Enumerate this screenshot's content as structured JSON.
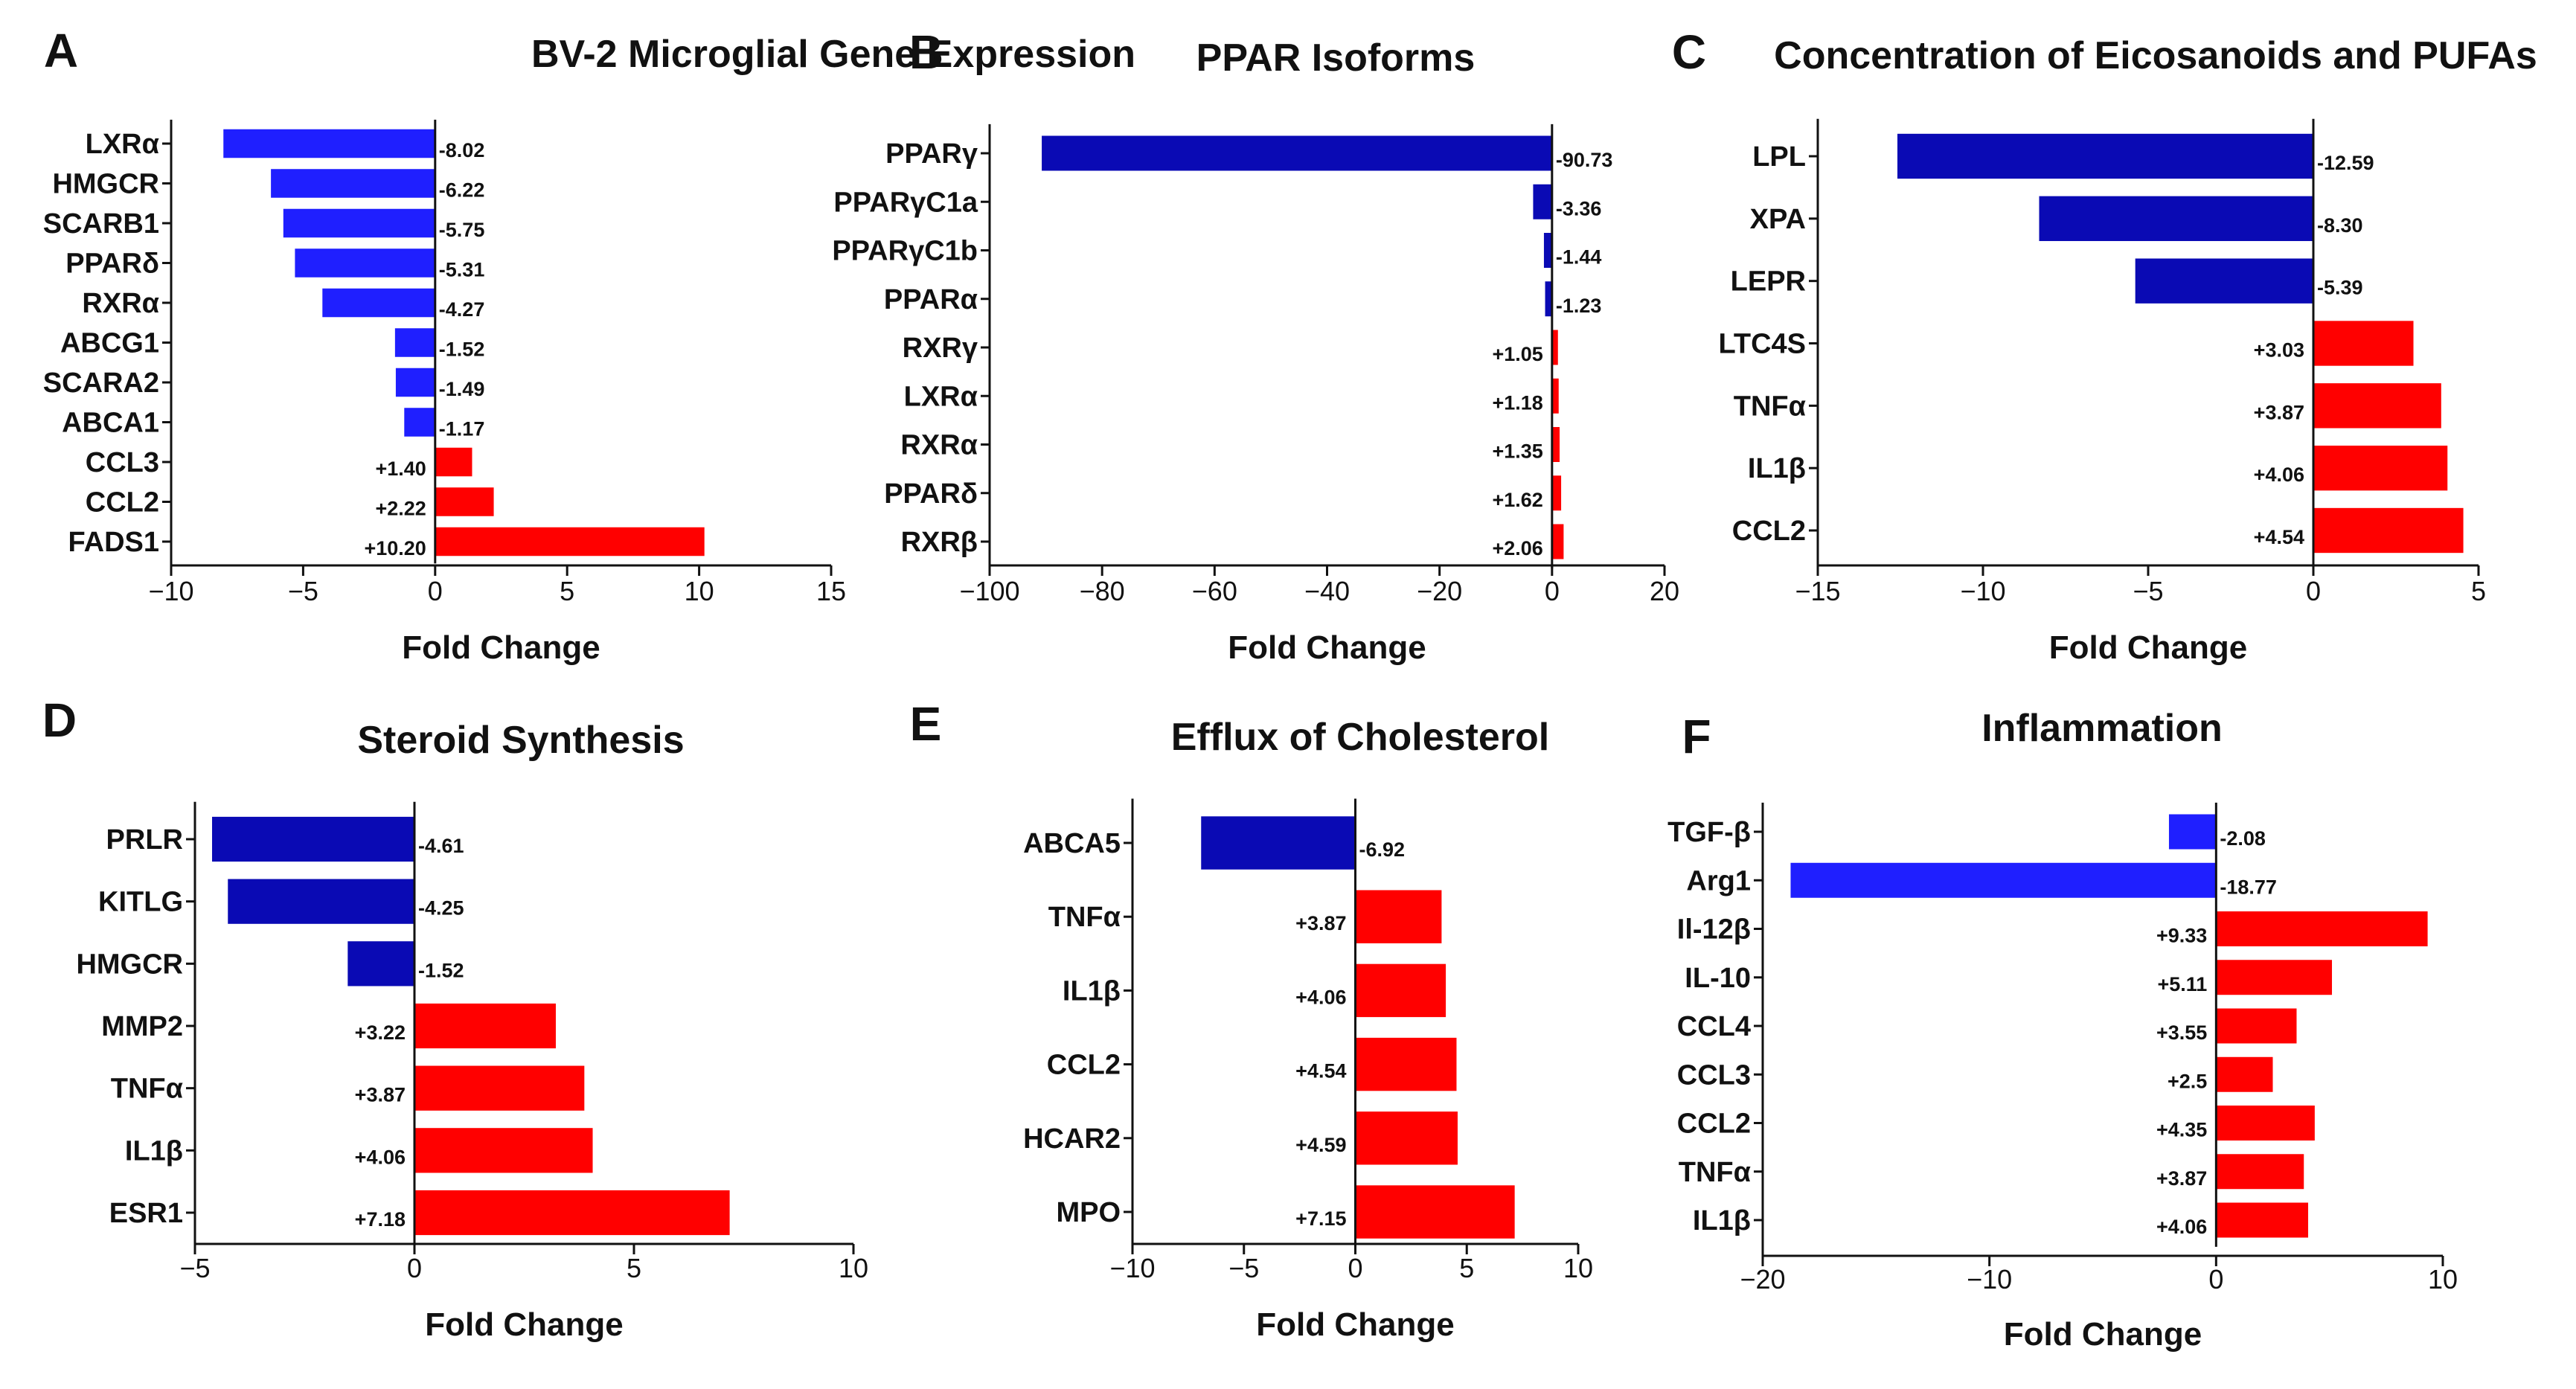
{
  "figure": {
    "x_axis_title": "Fold Change"
  },
  "colors": {
    "negative_light": "#1f1fff",
    "negative_dark": "#0a0ab4",
    "positive": "#ff0000",
    "axis": "#111111"
  },
  "chart_data": [
    {
      "letter": "A",
      "type": "bar",
      "orientation": "horizontal",
      "title": "BV-2 Microglial Gene Expression",
      "xlabel": "Fold Change",
      "xlim": [
        -10,
        15
      ],
      "xticks": [
        -10,
        -5,
        0,
        5,
        10,
        15
      ],
      "xtick_labels": [
        "−10",
        "−5",
        "0",
        "5",
        "10",
        "15"
      ],
      "negative_shade": "light",
      "categories": [
        "LXRα",
        "HMGCR",
        "SCARB1",
        "PPARδ",
        "RXRα",
        "ABCG1",
        "SCARA2",
        "ABCA1",
        "CCL3",
        "CCL2",
        "FADS1"
      ],
      "values": [
        -8.02,
        -6.22,
        -5.75,
        -5.31,
        -4.27,
        -1.52,
        -1.49,
        -1.17,
        1.4,
        2.22,
        10.2
      ],
      "value_labels": [
        "-8.02",
        "-6.22",
        "-5.75",
        "-5.31",
        "-4.27",
        "-1.52",
        "-1.49",
        "-1.17",
        "+1.40",
        "+2.22",
        "+10.20"
      ]
    },
    {
      "letter": "B",
      "type": "bar",
      "orientation": "horizontal",
      "title": "PPAR Isoforms",
      "xlabel": "Fold Change",
      "xlim": [
        -100,
        20
      ],
      "xticks": [
        -100,
        -80,
        -60,
        -40,
        -20,
        0,
        20
      ],
      "xtick_labels": [
        "−100",
        "−80",
        "−60",
        "−40",
        "−20",
        "0",
        "20"
      ],
      "negative_shade": "dark",
      "categories": [
        "PPARγ",
        "PPARγC1a",
        "PPARγC1b",
        "PPARα",
        "RXRγ",
        "LXRα",
        "RXRα",
        "PPARδ",
        "RXRβ"
      ],
      "values": [
        -90.73,
        -3.36,
        -1.44,
        -1.23,
        1.05,
        1.18,
        1.35,
        1.62,
        2.06
      ],
      "value_labels": [
        "-90.73",
        "-3.36",
        "-1.44",
        "-1.23",
        "+1.05",
        "+1.18",
        "+1.35",
        "+1.62",
        "+2.06"
      ]
    },
    {
      "letter": "C",
      "type": "bar",
      "orientation": "horizontal",
      "title": "Concentration of Eicosanoids and PUFAs",
      "xlabel": "Fold Change",
      "xlim": [
        -15,
        5
      ],
      "xticks": [
        -15,
        -10,
        -5,
        0,
        5
      ],
      "xtick_labels": [
        "−15",
        "−10",
        "−5",
        "0",
        "5"
      ],
      "negative_shade": "dark",
      "categories": [
        "LPL",
        "XPA",
        "LEPR",
        "LTC4S",
        "TNFα",
        "IL1β",
        "CCL2"
      ],
      "values": [
        -12.59,
        -8.3,
        -5.39,
        3.03,
        3.87,
        4.06,
        4.54
      ],
      "value_labels": [
        "-12.59",
        "-8.30",
        "-5.39",
        "+3.03",
        "+3.87",
        "+4.06",
        "+4.54"
      ]
    },
    {
      "letter": "D",
      "type": "bar",
      "orientation": "horizontal",
      "title": "Steroid Synthesis",
      "xlabel": "Fold Change",
      "xlim": [
        -5,
        10
      ],
      "xticks": [
        -5,
        0,
        5,
        10
      ],
      "xtick_labels": [
        "−5",
        "0",
        "5",
        "10"
      ],
      "negative_shade": "dark",
      "categories": [
        "PRLR",
        "KITLG",
        "HMGCR",
        "MMP2",
        "TNFα",
        "IL1β",
        "ESR1"
      ],
      "values": [
        -4.61,
        -4.25,
        -1.52,
        3.22,
        3.87,
        4.06,
        7.18
      ],
      "value_labels": [
        "-4.61",
        "-4.25",
        "-1.52",
        "+3.22",
        "+3.87",
        "+4.06",
        "+7.18"
      ]
    },
    {
      "letter": "E",
      "type": "bar",
      "orientation": "horizontal",
      "title": "Efflux of Cholesterol",
      "xlabel": "Fold Change",
      "xlim": [
        -10,
        10
      ],
      "xticks": [
        -10,
        -5,
        0,
        5,
        10
      ],
      "xtick_labels": [
        "−10",
        "−5",
        "0",
        "5",
        "10"
      ],
      "negative_shade": "dark",
      "categories": [
        "ABCA5",
        "TNFα",
        "IL1β",
        "CCL2",
        "HCAR2",
        "MPO"
      ],
      "values": [
        -6.92,
        3.87,
        4.06,
        4.54,
        4.59,
        7.15
      ],
      "value_labels": [
        "-6.92",
        "+3.87",
        "+4.06",
        "+4.54",
        "+4.59",
        "+7.15"
      ]
    },
    {
      "letter": "F",
      "type": "bar",
      "orientation": "horizontal",
      "title": "Inflammation",
      "xlabel": "Fold Change",
      "xlim": [
        -20,
        10
      ],
      "xticks": [
        -20,
        -10,
        0,
        10
      ],
      "xtick_labels": [
        "−20",
        "−10",
        "0",
        "10"
      ],
      "negative_shade": "light",
      "categories": [
        "TGF-β",
        "Arg1",
        "Il-12β",
        "IL-10",
        "CCL4",
        "CCL3",
        "CCL2",
        "TNFα",
        "IL1β"
      ],
      "values": [
        -2.08,
        -18.77,
        9.33,
        5.11,
        3.55,
        2.5,
        4.35,
        3.87,
        4.06
      ],
      "value_labels": [
        "-2.08",
        "-18.77",
        "+9.33",
        "+5.11",
        "+3.55",
        "+2.5",
        "+4.35",
        "+3.87",
        "+4.06"
      ]
    }
  ]
}
